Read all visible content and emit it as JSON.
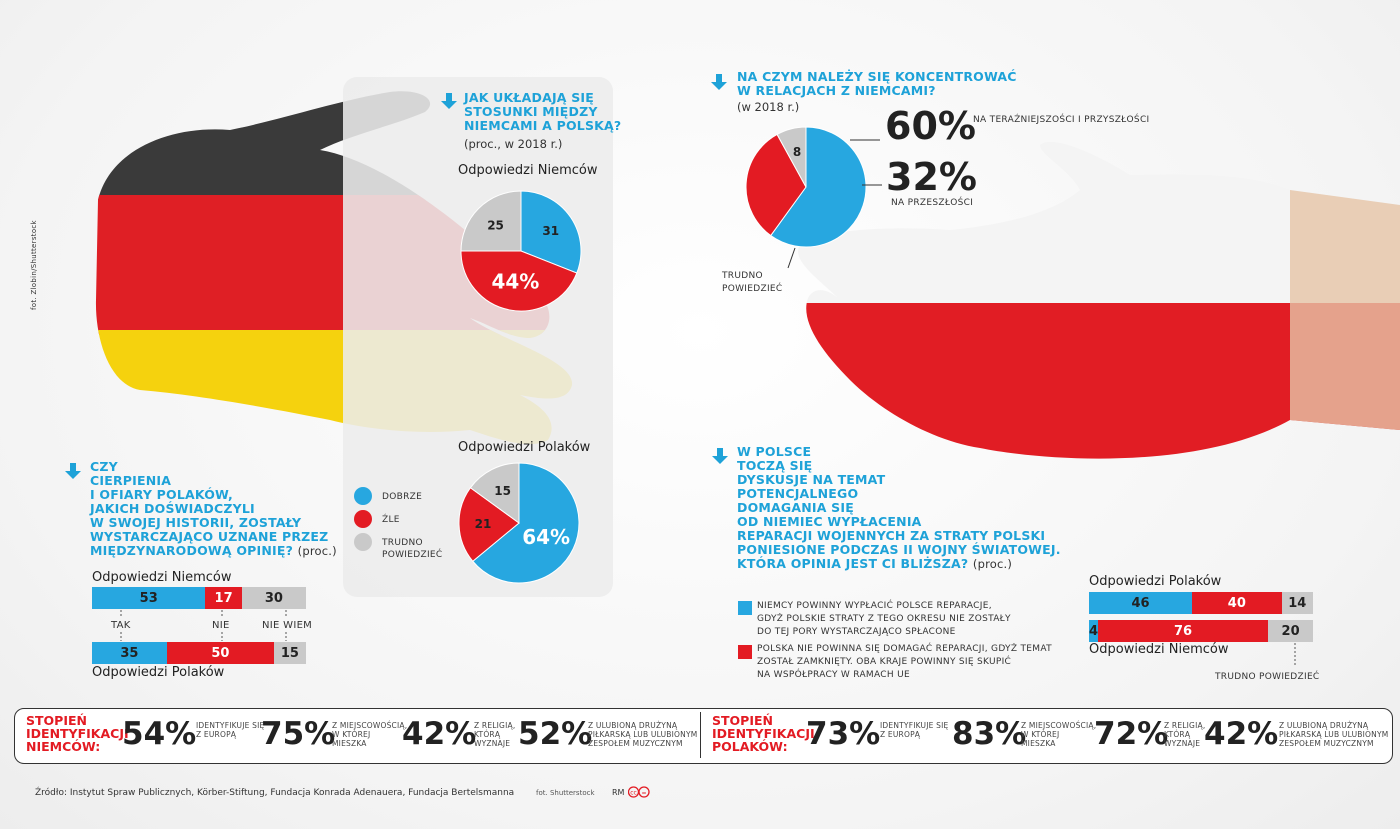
{
  "credit_vertical": "fot. Zlobin/Shutterstock",
  "q1": {
    "title": [
      "JAK UKŁADAJĄ SIĘ",
      "STOSUNKI MIĘDZY",
      "NIEMCAMI A POLSKĄ?"
    ],
    "unit": "(proc., w 2018 r.)",
    "germans_label": "Odpowiedzi Niemców",
    "poles_label": "Odpowiedzi Polaków",
    "legend": {
      "good": "DOBRZE",
      "bad": "ŹLE",
      "hard": [
        "TRUDNO",
        "POWIEDZIEĆ"
      ]
    }
  },
  "q2": {
    "title": [
      "NA CZYM NALEŻY SIĘ KONCENTROWAĆ",
      "W RELACJACH Z NIEMCAMI?"
    ],
    "unit": "(w 2018 r.)",
    "big1": "60%",
    "big1_label": "NA TERAŹNIEJSZOŚCI I PRZYSZŁOŚCI",
    "big2": "32%",
    "big2_label": "NA PRZESZŁOŚCI",
    "hard_label": [
      "TRUDNO",
      "POWIEDZIEĆ"
    ]
  },
  "q3": {
    "title": [
      "CZY",
      "CIERPIENIA",
      "I OFIARY POLAKÓW,",
      "JAKICH DOŚWIADCZYLI",
      "W SWOJEJ HISTORII, ZOSTAŁY",
      "WYSTARCZAJĄCO UZNANE PRZEZ",
      "MIĘDZYNARODOWĄ OPINIĘ?"
    ],
    "unit": "(proc.)",
    "germans_label": "Odpowiedzi Niemców",
    "poles_label": "Odpowiedzi Polaków",
    "cat_labels": [
      "TAK",
      "NIE",
      "NIE WIEM"
    ]
  },
  "q4": {
    "title": [
      "W POLSCE",
      "TOCZĄ SIĘ",
      "DYSKUSJE NA TEMAT",
      "POTENCJALNEGO",
      "DOMAGANIA SIĘ",
      "OD NIEMIEC WYPŁACENIA",
      "REPARACJI WOJENNYCH ZA STRATY POLSKI",
      "PONIESIONE PODCZAS II WOJNY ŚWIATOWEJ.",
      "KTÓRA OPINIA JEST CI BLIŻSZA?"
    ],
    "unit": "(proc.)",
    "opt1": [
      "NIEMCY POWINNY WYPŁACIĆ POLSCE REPARACJE,",
      "GDYŻ POLSKIE STRATY Z TEGO OKRESU NIE ZOSTAŁY",
      "DO TEJ PORY WYSTARCZAJĄCO SPŁACONE"
    ],
    "opt2": [
      "POLSKA NIE POWINNA SIĘ DOMAGAĆ REPARACJI, GDYŻ TEMAT",
      "ZOSTAŁ ZAMKNIĘTY. OBA KRAJE POWINNY SIĘ SKUPIĆ",
      "NA WSPÓŁPRACY W RAMACH UE"
    ],
    "poles_label": "Odpowiedzi Polaków",
    "germans_label": "Odpowiedzi Niemców",
    "hard_label": "TRUDNO POWIEDZIEĆ"
  },
  "identity": {
    "germans": {
      "label": [
        "STOPIEŃ",
        "IDENTYFIKACJI",
        "NIEMCÓW:"
      ],
      "items": [
        {
          "pct": "54%",
          "desc": [
            "IDENTYFIKUJE SIĘ",
            "Z EUROPĄ"
          ]
        },
        {
          "pct": "75%",
          "desc": [
            "Z MIEJSCOWOŚCIĄ,",
            "W KTÓREJ",
            "MIESZKA"
          ]
        },
        {
          "pct": "42%",
          "desc": [
            "Z RELIGIĄ,",
            "KTÓRĄ",
            "WYZNAJE"
          ]
        },
        {
          "pct": "52%",
          "desc": [
            "Z ULUBIONĄ DRUŻYNĄ",
            "PIŁKARSKĄ LUB ULUBIONYM",
            "ZESPOŁEM MUZYCZNYM"
          ]
        }
      ]
    },
    "poles": {
      "label": [
        "STOPIEŃ",
        "IDENTYFIKACJI",
        "POLAKÓW:"
      ],
      "items": [
        {
          "pct": "73%",
          "desc": [
            "IDENTYFIKUJE SIĘ",
            "Z EUROPĄ"
          ]
        },
        {
          "pct": "83%",
          "desc": [
            "Z MIEJSCOWOŚCIĄ,",
            "W KTÓREJ",
            "MIESZKA"
          ]
        },
        {
          "pct": "72%",
          "desc": [
            "Z RELIGIĄ,",
            "KTÓRĄ",
            "WYZNAJE"
          ]
        },
        {
          "pct": "42%",
          "desc": [
            "Z ULUBIONĄ DRUŻYNĄ",
            "PIŁKARSKĄ LUB ULUBIONYM",
            "ZESPOŁEM MUZYCZNYM"
          ]
        }
      ]
    }
  },
  "source": "Źródło: Instytut Spraw Publicznych, Körber-Stiftung, Fundacja Konrada Adenauera, Fundacja Bertelsmanna",
  "photo_credit": "fot. Shutterstock",
  "rm": "RM",
  "colors": {
    "blue": "#27a7e0",
    "red": "#e31b23",
    "grey": "#c9c9c9",
    "black": "#333333",
    "yellow": "#f6d70c"
  },
  "chart_data": [
    {
      "type": "pie",
      "name": "Odpowiedzi Niemców",
      "categories": [
        "DOBRZE",
        "ŹLE",
        "TRUDNO POWIEDZIEĆ"
      ],
      "values": [
        31,
        44,
        25
      ],
      "value_labels": [
        "31",
        "44%",
        "25"
      ]
    },
    {
      "type": "pie",
      "name": "Odpowiedzi Polaków",
      "categories": [
        "DOBRZE",
        "ŹLE",
        "TRUDNO POWIEDZIEĆ"
      ],
      "values": [
        64,
        21,
        15
      ],
      "value_labels": [
        "64%",
        "21",
        "15"
      ]
    },
    {
      "type": "pie",
      "categories": [
        "NA TERAŹNIEJSZOŚCI I PRZYSZŁOŚCI",
        "NA PRZESZŁOŚCI",
        "TRUDNO POWIEDZIEĆ"
      ],
      "values": [
        60,
        32,
        8
      ],
      "value_labels": [
        "",
        "",
        "8"
      ]
    },
    {
      "type": "bar",
      "orientation": "stacked-horizontal",
      "categories": [
        "TAK",
        "NIE",
        "NIE WIEM"
      ],
      "series": [
        {
          "name": "Odpowiedzi Niemców",
          "values": [
            53,
            17,
            30
          ]
        },
        {
          "name": "Odpowiedzi Polaków",
          "values": [
            35,
            50,
            15
          ]
        }
      ]
    },
    {
      "type": "bar",
      "orientation": "stacked-horizontal",
      "categories": [
        "opt1",
        "opt2",
        "TRUDNO POWIEDZIEĆ"
      ],
      "series": [
        {
          "name": "Odpowiedzi Polaków",
          "values": [
            46,
            40,
            14
          ]
        },
        {
          "name": "Odpowiedzi Niemców",
          "values": [
            4,
            76,
            20
          ]
        }
      ]
    }
  ]
}
